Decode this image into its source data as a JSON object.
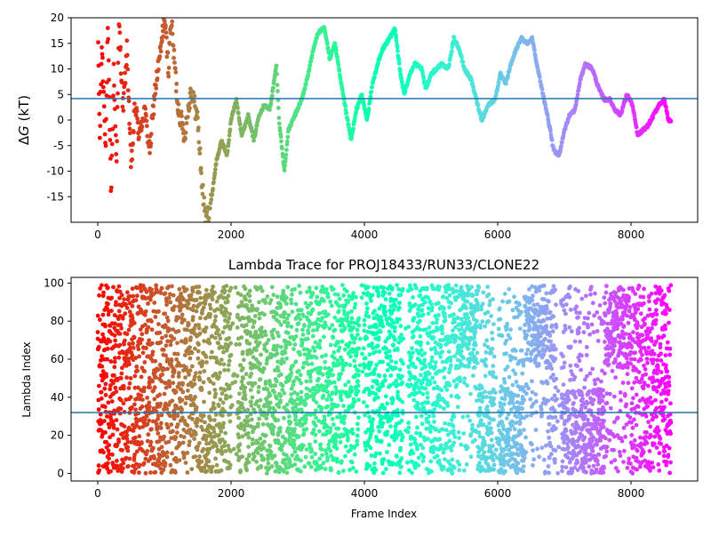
{
  "colormap": "rainbow",
  "chart_data": [
    {
      "type": "scatter",
      "title": "",
      "ylabel_prefix": "Δ",
      "ylabel_var": "G",
      "ylabel_unit": " (kT)",
      "xlim": [
        -400,
        9000
      ],
      "ylim": [
        -20,
        20
      ],
      "xticks": [
        0,
        2000,
        4000,
        6000,
        8000
      ],
      "yticks": [
        -15,
        -10,
        -5,
        0,
        5,
        10,
        15,
        20
      ],
      "hline": {
        "y": 4.2,
        "color": "#1f77b4"
      },
      "frame_range": [
        0,
        8600
      ],
      "trace": [
        [
          0,
          20
        ],
        [
          30,
          -4
        ],
        [
          60,
          15
        ],
        [
          120,
          -5
        ],
        [
          150,
          18
        ],
        [
          200,
          -14
        ],
        [
          240,
          10
        ],
        [
          280,
          -8
        ],
        [
          320,
          19
        ],
        [
          380,
          2
        ],
        [
          440,
          14
        ],
        [
          500,
          -10
        ],
        [
          560,
          3
        ],
        [
          620,
          -3
        ],
        [
          700,
          2
        ],
        [
          780,
          -6
        ],
        [
          860,
          6
        ],
        [
          940,
          13
        ],
        [
          1000,
          20
        ],
        [
          1060,
          10
        ],
        [
          1100,
          20
        ],
        [
          1200,
          3
        ],
        [
          1300,
          -3
        ],
        [
          1400,
          6
        ],
        [
          1500,
          0
        ],
        [
          1560,
          -12
        ],
        [
          1620,
          -20
        ],
        [
          1700,
          -16
        ],
        [
          1780,
          -8
        ],
        [
          1860,
          -4
        ],
        [
          1940,
          -7
        ],
        [
          2000,
          0
        ],
        [
          2080,
          4
        ],
        [
          2160,
          -3
        ],
        [
          2260,
          1
        ],
        [
          2340,
          -4
        ],
        [
          2420,
          1
        ],
        [
          2500,
          3
        ],
        [
          2580,
          2
        ],
        [
          2640,
          7
        ],
        [
          2680,
          11
        ],
        [
          2720,
          0
        ],
        [
          2800,
          -10
        ],
        [
          2860,
          -2
        ],
        [
          2960,
          1
        ],
        [
          3060,
          4
        ],
        [
          3140,
          8
        ],
        [
          3220,
          13
        ],
        [
          3300,
          17
        ],
        [
          3400,
          18
        ],
        [
          3480,
          12
        ],
        [
          3560,
          15
        ],
        [
          3640,
          8
        ],
        [
          3720,
          2
        ],
        [
          3800,
          -4
        ],
        [
          3880,
          2
        ],
        [
          3960,
          5
        ],
        [
          4040,
          0
        ],
        [
          4120,
          7
        ],
        [
          4200,
          11
        ],
        [
          4280,
          14
        ],
        [
          4380,
          16
        ],
        [
          4460,
          18
        ],
        [
          4540,
          9
        ],
        [
          4600,
          5
        ],
        [
          4680,
          9
        ],
        [
          4760,
          11
        ],
        [
          4860,
          10
        ],
        [
          4920,
          6
        ],
        [
          5000,
          9
        ],
        [
          5080,
          10
        ],
        [
          5160,
          11
        ],
        [
          5260,
          10
        ],
        [
          5340,
          16
        ],
        [
          5420,
          14
        ],
        [
          5500,
          10
        ],
        [
          5600,
          8
        ],
        [
          5680,
          4
        ],
        [
          5760,
          0
        ],
        [
          5860,
          3
        ],
        [
          5960,
          4
        ],
        [
          6040,
          9
        ],
        [
          6120,
          7
        ],
        [
          6200,
          11
        ],
        [
          6280,
          14
        ],
        [
          6360,
          16
        ],
        [
          6440,
          15
        ],
        [
          6520,
          16
        ],
        [
          6600,
          10
        ],
        [
          6680,
          5
        ],
        [
          6760,
          0
        ],
        [
          6840,
          -6
        ],
        [
          6920,
          -7
        ],
        [
          7000,
          -2
        ],
        [
          7080,
          1
        ],
        [
          7160,
          2
        ],
        [
          7240,
          8
        ],
        [
          7320,
          11
        ],
        [
          7420,
          10
        ],
        [
          7520,
          6
        ],
        [
          7600,
          4
        ],
        [
          7680,
          4
        ],
        [
          7760,
          2
        ],
        [
          7840,
          1
        ],
        [
          7940,
          5
        ],
        [
          8020,
          3
        ],
        [
          8100,
          -3
        ],
        [
          8180,
          -2
        ],
        [
          8260,
          -1
        ],
        [
          8340,
          1
        ],
        [
          8420,
          3
        ],
        [
          8500,
          4
        ],
        [
          8560,
          0
        ]
      ]
    },
    {
      "type": "scatter",
      "title": "Lambda Trace for PROJ18433/RUN33/CLONE22",
      "xlabel": "Frame Index",
      "ylabel": "Lambda Index",
      "xlim": [
        -400,
        9000
      ],
      "ylim": [
        -4,
        103
      ],
      "xticks": [
        0,
        2000,
        4000,
        6000,
        8000
      ],
      "yticks": [
        0,
        20,
        40,
        60,
        80,
        100
      ],
      "hline": {
        "y": 32,
        "color": "#1f77b4"
      },
      "frame_range": [
        0,
        8600
      ],
      "value_range": [
        0,
        99
      ],
      "sparse_bands": [
        [
          2000,
          2090
        ],
        [
          3920,
          3990
        ],
        [
          4580,
          4660
        ],
        [
          5950,
          6010
        ],
        [
          6880,
          6950
        ]
      ],
      "low_cluster": [
        [
          5700,
          6400
        ],
        [
          6900,
          7600
        ]
      ],
      "high_cluster": [
        [
          5350,
          5700
        ],
        [
          6400,
          6800
        ],
        [
          7600,
          8000
        ]
      ]
    }
  ]
}
